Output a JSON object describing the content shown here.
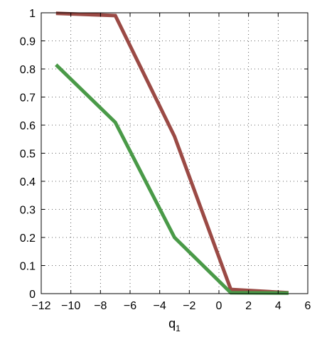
{
  "chart_data": {
    "type": "line",
    "title": "",
    "xlabel": "q",
    "xlabel_subscript": "1",
    "ylabel": "",
    "xlim": [
      -12,
      6
    ],
    "ylim": [
      0,
      1
    ],
    "x_ticks": [
      -12,
      -10,
      -8,
      -6,
      -4,
      -2,
      0,
      2,
      4,
      6
    ],
    "y_ticks": [
      0,
      0.1,
      0.2,
      0.3,
      0.4,
      0.5,
      0.6,
      0.7,
      0.8,
      0.9,
      1
    ],
    "x_tick_labels": [
      "−12",
      "−10",
      "−8",
      "−6",
      "−4",
      "−2",
      "0",
      "2",
      "4",
      "6"
    ],
    "y_tick_labels": [
      "0",
      "0.1",
      "0.2",
      "0.3",
      "0.4",
      "0.5",
      "0.6",
      "0.7",
      "0.8",
      "0.9",
      "1"
    ],
    "grid": true,
    "legend": "none",
    "series": [
      {
        "color": "#9b4a45",
        "points": [
          [
            -11,
            0.998
          ],
          [
            -7,
            0.99
          ],
          [
            -3,
            0.56
          ],
          [
            0.8,
            0.015
          ],
          [
            4.7,
            0.003
          ]
        ]
      },
      {
        "color": "#4a9a48",
        "points": [
          [
            -11,
            0.815
          ],
          [
            -7,
            0.61
          ],
          [
            -3,
            0.2
          ],
          [
            0.8,
            0.003
          ],
          [
            4.7,
            0.002
          ]
        ]
      }
    ]
  }
}
